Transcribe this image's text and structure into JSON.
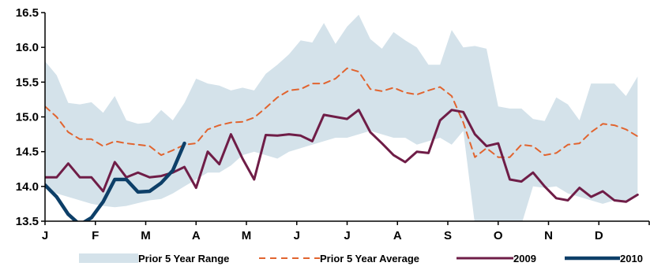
{
  "chart_data": {
    "type": "line",
    "title": "",
    "xlabel": "",
    "ylabel": "",
    "ylim": [
      13.5,
      16.5
    ],
    "y_ticks": [
      "13.5",
      "14.0",
      "14.5",
      "15.0",
      "15.5",
      "16.0",
      "16.5"
    ],
    "x_ticks": [
      "J",
      "F",
      "M",
      "A",
      "M",
      "J",
      "J",
      "A",
      "S",
      "O",
      "N",
      "D"
    ],
    "weeks_per_year": 52,
    "grid": false,
    "legend_position": "bottom",
    "colors": {
      "range_fill": "#d4e2ea",
      "average": "#e1642f",
      "y2009": "#6f1d47",
      "y2010": "#0d3f68",
      "axis": "#000000"
    },
    "range": {
      "name": "Prior 5 Year Range",
      "low": [
        13.99,
        13.9,
        13.85,
        13.8,
        13.75,
        13.72,
        13.7,
        13.72,
        13.76,
        13.8,
        13.82,
        13.9,
        14.0,
        14.1,
        14.2,
        14.2,
        14.3,
        14.45,
        14.5,
        14.45,
        14.4,
        14.5,
        14.55,
        14.6,
        14.65,
        14.7,
        14.7,
        14.75,
        14.8,
        14.75,
        14.7,
        14.7,
        14.6,
        14.65,
        14.7,
        14.6,
        14.8,
        13.45,
        13.45,
        13.45,
        13.45,
        13.45,
        14.0,
        13.98,
        14.0,
        13.9,
        13.85,
        13.8,
        13.75,
        13.8,
        13.8,
        13.9
      ],
      "high": [
        15.8,
        15.6,
        15.2,
        15.18,
        15.21,
        15.06,
        15.3,
        14.95,
        14.9,
        14.92,
        15.1,
        14.95,
        15.2,
        15.55,
        15.48,
        15.45,
        15.38,
        15.42,
        15.38,
        15.62,
        15.75,
        15.9,
        16.1,
        16.07,
        16.35,
        16.05,
        16.3,
        16.47,
        16.12,
        15.98,
        16.22,
        16.1,
        16.0,
        15.75,
        15.75,
        16.25,
        16.0,
        16.02,
        15.98,
        15.15,
        15.12,
        15.12,
        14.97,
        14.94,
        15.28,
        15.18,
        14.95,
        15.48,
        15.48,
        15.48,
        15.3,
        15.58
      ]
    },
    "series": [
      {
        "name": "Prior 5 Year Average",
        "values": [
          15.15,
          15.0,
          14.78,
          14.68,
          14.68,
          14.58,
          14.65,
          14.62,
          14.6,
          14.58,
          14.45,
          14.52,
          14.6,
          14.62,
          14.82,
          14.88,
          14.92,
          14.93,
          14.99,
          15.13,
          15.28,
          15.38,
          15.4,
          15.48,
          15.48,
          15.55,
          15.7,
          15.65,
          15.4,
          15.37,
          15.42,
          15.35,
          15.32,
          15.38,
          15.43,
          15.3,
          14.92,
          14.42,
          14.55,
          14.42,
          14.42,
          14.6,
          14.58,
          14.45,
          14.48,
          14.6,
          14.62,
          14.78,
          14.9,
          14.88,
          14.82,
          14.72
        ]
      },
      {
        "name": "2009",
        "values": [
          14.13,
          14.13,
          14.33,
          14.13,
          14.13,
          13.93,
          14.35,
          14.13,
          14.2,
          14.13,
          14.15,
          14.2,
          14.28,
          13.98,
          14.5,
          14.32,
          14.75,
          14.4,
          14.1,
          14.74,
          14.73,
          14.75,
          14.73,
          14.65,
          15.03,
          15.0,
          14.97,
          15.1,
          14.78,
          14.62,
          14.45,
          14.35,
          14.5,
          14.48,
          14.95,
          15.1,
          15.07,
          14.75,
          14.58,
          14.62,
          14.1,
          14.07,
          14.2,
          14.0,
          13.83,
          13.8,
          13.98,
          13.85,
          13.93,
          13.8,
          13.78,
          13.88
        ]
      },
      {
        "name": "2010",
        "values": [
          14.02,
          13.85,
          13.6,
          13.45,
          13.55,
          13.78,
          14.1,
          14.1,
          13.92,
          13.93,
          14.05,
          14.23,
          14.62
        ]
      }
    ]
  }
}
